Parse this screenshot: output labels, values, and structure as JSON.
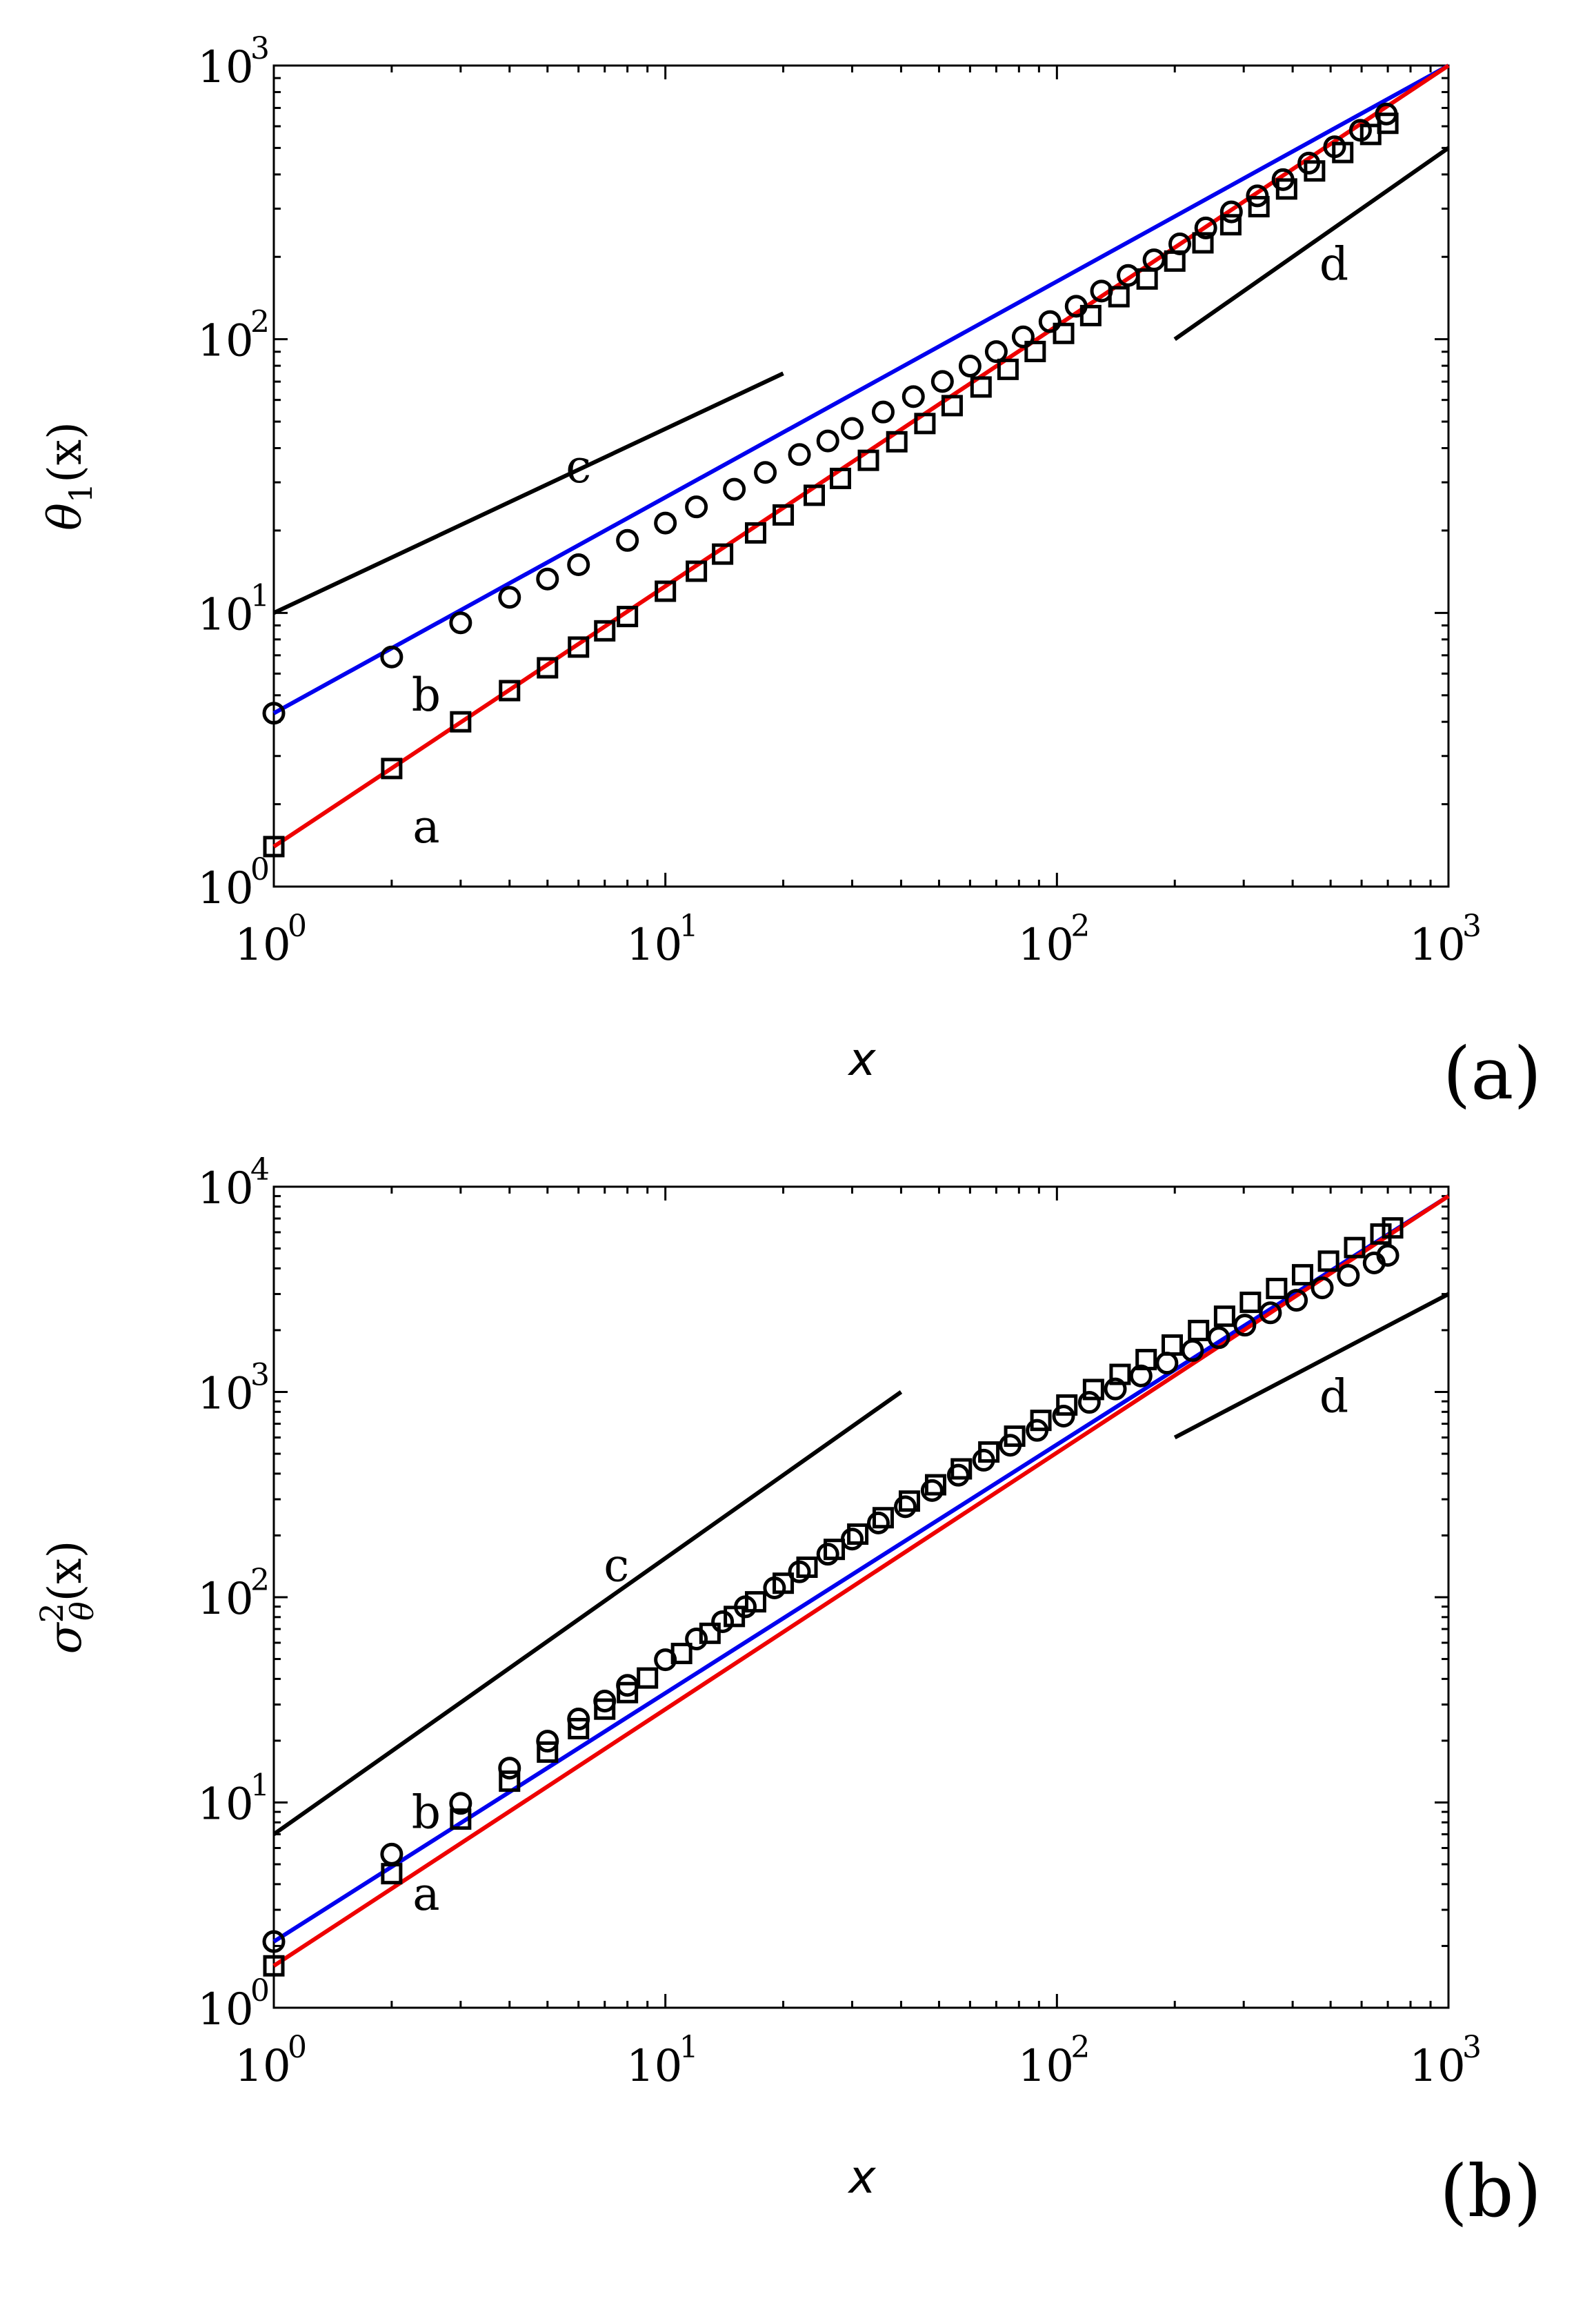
{
  "chart_data": [
    {
      "type": "line",
      "panel_label": "(a)",
      "xlabel": "x",
      "ylabel": {
        "main": "θ",
        "sub": "1",
        "rest": "(x)"
      },
      "xscale": "log",
      "yscale": "log",
      "xlim": [
        1,
        1000
      ],
      "ylim": [
        1,
        1000
      ],
      "x_ticks": [
        {
          "base": "10",
          "exp": "0"
        },
        {
          "base": "10",
          "exp": "1"
        },
        {
          "base": "10",
          "exp": "2"
        },
        {
          "base": "10",
          "exp": "3"
        }
      ],
      "y_ticks": [
        {
          "base": "10",
          "exp": "0"
        },
        {
          "base": "10",
          "exp": "1"
        },
        {
          "base": "10",
          "exp": "2"
        },
        {
          "base": "10",
          "exp": "3"
        }
      ],
      "series": [
        {
          "name": "b",
          "label": "b",
          "color": "#0000ee",
          "marker": "circle",
          "x_start": 1,
          "y_start": 4.3,
          "x_end": 1000,
          "y_end": 1000
        },
        {
          "name": "a",
          "label": "a",
          "color": "#ee0000",
          "marker": "square",
          "x_start": 1,
          "y_start": 1.4,
          "x_end": 1000,
          "y_end": 1000
        }
      ],
      "markers": {
        "b": {
          "x": [
            1,
            2,
            3,
            4,
            5,
            6,
            8,
            10,
            12,
            15,
            18,
            22,
            26,
            30,
            36,
            43,
            51,
            60,
            70,
            82,
            96,
            112,
            130,
            152,
            177,
            206,
            240,
            279,
            325,
            378,
            440,
            512,
            596,
            694
          ],
          "y": [
            4.3,
            6.9,
            9.2,
            11.4,
            13.3,
            15.0,
            18.4,
            21.3,
            24.4,
            28.3,
            32.6,
            37.9,
            42.5,
            47.2,
            54.2,
            61.7,
            70.1,
            79.8,
            90.1,
            102,
            116,
            132,
            150,
            171,
            195,
            223,
            255,
            292,
            334,
            383,
            440,
            505,
            580,
            665
          ]
        },
        "a": {
          "x": [
            1,
            2,
            3,
            4,
            5,
            6,
            7,
            8,
            10,
            12,
            14,
            17,
            20,
            24,
            28,
            33,
            39,
            46,
            54,
            64,
            75,
            88,
            104,
            122,
            144,
            170,
            200,
            236,
            278,
            328,
            386,
            455,
            537,
            633,
            700
          ],
          "y": [
            1.4,
            2.7,
            4.0,
            5.2,
            6.3,
            7.5,
            8.6,
            9.7,
            12.0,
            14.2,
            16.4,
            19.6,
            22.8,
            26.9,
            31.0,
            36.1,
            42.2,
            49.2,
            57.2,
            66.9,
            77.6,
            90.2,
            105,
            122,
            143,
            166,
            193,
            225,
            262,
            305,
            354,
            412,
            481,
            560,
            615
          ]
        }
      },
      "reference_lines": [
        {
          "label": "c",
          "x": [
            1,
            20
          ],
          "y": [
            10,
            75
          ]
        },
        {
          "label": "d",
          "x": [
            200,
            1000
          ],
          "y": [
            100,
            500
          ]
        }
      ],
      "annotations": [
        {
          "text": "c",
          "x": 6.0,
          "y": 30
        },
        {
          "text": "d",
          "x": 510,
          "y": 165
        },
        {
          "text": "b",
          "x": 2.45,
          "y": 4.4
        },
        {
          "text": "a",
          "x": 2.45,
          "y": 1.45
        }
      ]
    },
    {
      "type": "line",
      "panel_label": "(b)",
      "xlabel": "x",
      "ylabel": {
        "main": "σ",
        "sup": "2",
        "sub": "θ",
        "rest": "(x)"
      },
      "xscale": "log",
      "yscale": "log",
      "xlim": [
        1,
        1000
      ],
      "ylim": [
        1,
        10000
      ],
      "x_ticks": [
        {
          "base": "10",
          "exp": "0"
        },
        {
          "base": "10",
          "exp": "1"
        },
        {
          "base": "10",
          "exp": "2"
        },
        {
          "base": "10",
          "exp": "3"
        }
      ],
      "y_ticks": [
        {
          "base": "10",
          "exp": "0"
        },
        {
          "base": "10",
          "exp": "1"
        },
        {
          "base": "10",
          "exp": "2"
        },
        {
          "base": "10",
          "exp": "3"
        },
        {
          "base": "10",
          "exp": "4"
        }
      ],
      "series": [
        {
          "name": "b",
          "label": "b",
          "color": "#0000ee",
          "marker": "circle",
          "x_start": 1,
          "y_start": 2.1,
          "x_end": 1000,
          "y_end": 9000
        },
        {
          "name": "a",
          "label": "a",
          "color": "#ee0000",
          "marker": "square",
          "x_start": 1,
          "y_start": 1.6,
          "x_end": 1000,
          "y_end": 9000
        }
      ],
      "markers": {
        "b": {
          "x": [
            1,
            2,
            3,
            4,
            5,
            6,
            7,
            8,
            10,
            12,
            14,
            16,
            19,
            22,
            26,
            30,
            35,
            41,
            48,
            56,
            65,
            76,
            89,
            104,
            121,
            141,
            164,
            191,
            222,
            259,
            302,
            351,
            409,
            476,
            555,
            646,
            700
          ],
          "y": [
            2.1,
            5.6,
            9.9,
            14.7,
            19.9,
            25.5,
            31.2,
            37.2,
            49.6,
            62.6,
            76.0,
            89.8,
            111,
            133,
            162,
            192,
            230,
            276,
            331,
            393,
            465,
            550,
            650,
            763,
            890,
            1034,
            1197,
            1383,
            1592,
            1839,
            2116,
            2430,
            2798,
            3216,
            3698,
            4252,
            4630
          ]
        },
        "a": {
          "x": [
            1,
            2,
            3,
            4,
            5,
            6,
            7,
            8,
            9,
            11,
            13,
            15,
            17,
            20,
            23,
            27,
            31,
            36,
            42,
            49,
            57,
            67,
            78,
            91,
            106,
            124,
            145,
            169,
            197,
            230,
            268,
            312,
            364,
            424,
            494,
            576,
            672,
            720
          ],
          "y": [
            1.6,
            4.5,
            8.3,
            12.7,
            17.6,
            22.9,
            28.5,
            34.3,
            40.4,
            53.2,
            66.7,
            80.6,
            95.0,
            117,
            140,
            171,
            203,
            244,
            294,
            353,
            422,
            510,
            609,
            727,
            864,
            1028,
            1218,
            1438,
            1693,
            1993,
            2339,
            2733,
            3193,
            3724,
            4339,
            5053,
            5881,
            6300
          ]
        }
      },
      "reference_lines": [
        {
          "label": "c",
          "x": [
            1,
            40
          ],
          "y": [
            7,
            1000
          ]
        },
        {
          "label": "d",
          "x": [
            200,
            1000
          ],
          "y": [
            600,
            3000
          ]
        }
      ],
      "annotations": [
        {
          "text": "c",
          "x": 7.5,
          "y": 120
        },
        {
          "text": "d",
          "x": 510,
          "y": 800
        },
        {
          "text": "b",
          "x": 2.45,
          "y": 7.5
        },
        {
          "text": "a",
          "x": 2.45,
          "y": 3.0
        }
      ]
    }
  ],
  "colors": {
    "axis": "#000000",
    "marker": "#000000",
    "ref_line": "#000000"
  }
}
